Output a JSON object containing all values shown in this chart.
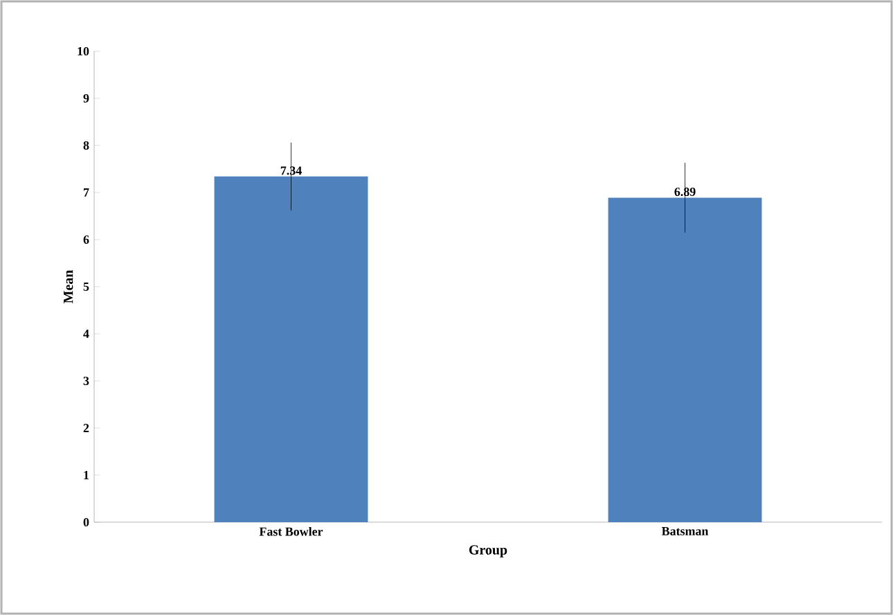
{
  "chart_data": {
    "type": "bar",
    "xlabel": "Group",
    "ylabel": "Mean",
    "categories": [
      "Fast Bowler",
      "Batsman"
    ],
    "values": [
      7.34,
      6.89
    ],
    "errors": [
      0.72,
      0.74
    ],
    "color": "#4f81bd",
    "data_labels": true,
    "ylim": [
      0,
      10
    ],
    "yticks": [
      0,
      1,
      2,
      3,
      4,
      5,
      6,
      7,
      8,
      9,
      10
    ]
  }
}
